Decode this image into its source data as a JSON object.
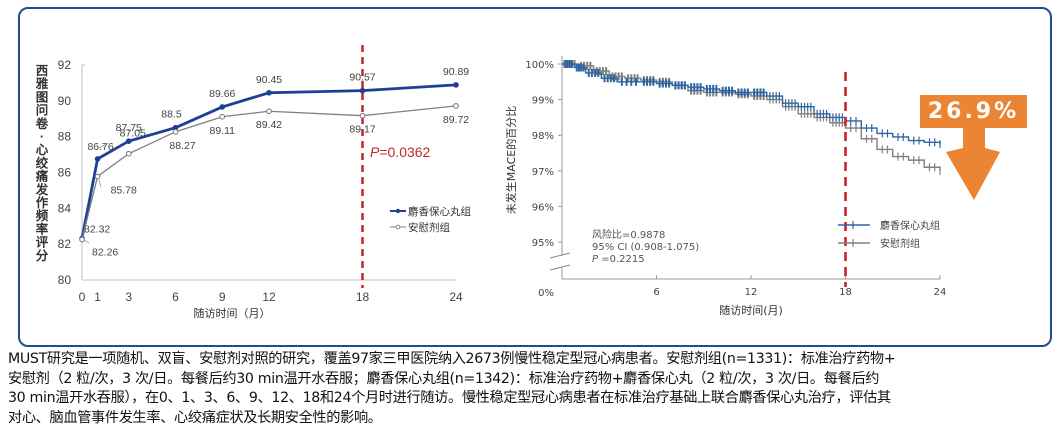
{
  "chart_data": [
    {
      "type": "line",
      "title": "",
      "ylabel": "西雅图问卷-心绞痛发作频率评分",
      "xlabel": "随访时间（月）",
      "x": [
        0,
        1,
        3,
        6,
        9,
        12,
        18,
        24
      ],
      "xticks": [
        "0",
        "1",
        "3",
        "6",
        "9",
        "12",
        "18",
        "24"
      ],
      "yticks": [
        "80",
        "82",
        "84",
        "86",
        "88",
        "90",
        "92"
      ],
      "ylim": [
        80,
        92
      ],
      "xlim": [
        0,
        24
      ],
      "grid": false,
      "legend_position": "right",
      "series": [
        {
          "name": "麝香保心丸组",
          "color": "#1f3f96",
          "values": [
            82.32,
            86.76,
            87.75,
            88.5,
            89.66,
            90.45,
            90.57,
            90.89
          ],
          "labels": [
            "82.32",
            "86.76",
            "87.75",
            "88.5",
            "89.66",
            "90.45",
            "90.57",
            "90.89"
          ]
        },
        {
          "name": "安慰剂组",
          "color": "#7f7f7f",
          "values": [
            82.26,
            85.78,
            87.05,
            88.27,
            89.11,
            89.42,
            89.17,
            89.72
          ],
          "labels": [
            "82.26",
            "85.78",
            "87.05",
            "88.27",
            "89.11",
            "89.42",
            "89.17",
            "89.72"
          ]
        }
      ],
      "reference_line": {
        "x": 18,
        "color": "#c0282d"
      },
      "annotation": {
        "p_label": "P",
        "p_value": "=0.0362"
      }
    },
    {
      "type": "line",
      "subtype": "kaplan-meier",
      "ylabel": "未发生MACE的百分比",
      "xlabel": "随访时间(月)",
      "x": [
        0,
        6,
        12,
        18,
        24
      ],
      "xticks": [
        "6",
        "12",
        "18",
        "24"
      ],
      "yticks": [
        "0%",
        "95%",
        "96%",
        "97%",
        "98%",
        "99%",
        "100%"
      ],
      "ylim": [
        95,
        100
      ],
      "xlim": [
        0,
        24
      ],
      "axis_break": true,
      "legend_position": "right",
      "series": [
        {
          "name": "麝香保心丸组",
          "color": "#2e65a0",
          "points": [
            [
              0,
              100
            ],
            [
              0.8,
              99.9
            ],
            [
              1.5,
              99.75
            ],
            [
              2.5,
              99.6
            ],
            [
              3.5,
              99.5
            ],
            [
              5,
              99.5
            ],
            [
              6,
              99.45
            ],
            [
              7,
              99.4
            ],
            [
              8,
              99.35
            ],
            [
              9,
              99.3
            ],
            [
              10,
              99.25
            ],
            [
              11,
              99.2
            ],
            [
              12,
              99.2
            ],
            [
              13,
              99.1
            ],
            [
              14,
              98.9
            ],
            [
              15,
              98.8
            ],
            [
              16,
              98.6
            ],
            [
              17,
              98.5
            ],
            [
              18,
              98.4
            ],
            [
              19,
              98.2
            ],
            [
              20,
              98.05
            ],
            [
              21,
              97.95
            ],
            [
              22,
              97.85
            ],
            [
              23,
              97.8
            ],
            [
              24,
              97.75
            ]
          ]
        },
        {
          "name": "安慰剂组",
          "color": "#808080",
          "points": [
            [
              0,
              100
            ],
            [
              1,
              99.95
            ],
            [
              2,
              99.8
            ],
            [
              3,
              99.65
            ],
            [
              4,
              99.6
            ],
            [
              5,
              99.55
            ],
            [
              6,
              99.5
            ],
            [
              7,
              99.4
            ],
            [
              8,
              99.25
            ],
            [
              9,
              99.2
            ],
            [
              10,
              99.2
            ],
            [
              11,
              99.15
            ],
            [
              12,
              99.1
            ],
            [
              13,
              99.0
            ],
            [
              14,
              98.8
            ],
            [
              15,
              98.6
            ],
            [
              16,
              98.5
            ],
            [
              17,
              98.35
            ],
            [
              18,
              98.2
            ],
            [
              19,
              97.9
            ],
            [
              20,
              97.6
            ],
            [
              21,
              97.4
            ],
            [
              22,
              97.3
            ],
            [
              23,
              97.1
            ],
            [
              24,
              97.0
            ]
          ]
        }
      ],
      "reference_line": {
        "x": 18,
        "color": "#d0202a"
      },
      "stats": {
        "hr": "风险比=0.9878",
        "ci": "95% CI (0.908-1.075)",
        "p_label": "P",
        "p_value": " =0.2215"
      },
      "callout": {
        "text": "26.9%",
        "color": "#ec8533"
      }
    }
  ],
  "caption": {
    "lines": [
      "MUST研究是一项随机、双盲、安慰剂对照的研究，覆盖97家三甲医院纳入2673例慢性稳定型冠心病患者。安慰剂组(n=1331)：标准治疗药物+",
      "安慰剂（2 粒/次，3 次/日。每餐后约30 min温开水吞服；麝香保心丸组(n=1342)：标准治疗药物+麝香保心丸（2 粒/次，3 次/日。每餐后约",
      "30 min温开水吞服），在0、1、3、6、9、12、18和24个月时进行随访。慢性稳定型冠心病患者在标准治疗基础上联合麝香保心丸治疗，评估其",
      "对心、脑血管事件发生率、心绞痛症状及长期安全性的影响。"
    ]
  }
}
